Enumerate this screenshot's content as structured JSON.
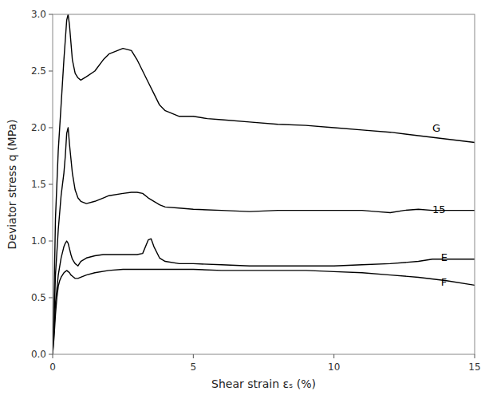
{
  "chart_data": {
    "type": "line",
    "xlabel": "Shear strain  εₛ (%)",
    "ylabel": "Deviator stress q (MPa)",
    "xlim": [
      0,
      15
    ],
    "ylim": [
      0,
      3
    ],
    "xticks": [
      0,
      5,
      10,
      15
    ],
    "yticks": [
      {
        "value": 0,
        "label": "0.0"
      },
      0.5,
      {
        "value": 1,
        "label": "1.0"
      },
      1.5,
      {
        "value": 2,
        "label": "2.0"
      },
      2.5,
      {
        "value": 3,
        "label": "3.0"
      }
    ],
    "grid": false,
    "color": "#000000",
    "series": [
      {
        "x": [
          0.0,
          0.05,
          0.1,
          0.2,
          0.3,
          0.4,
          0.5,
          0.55,
          0.6,
          0.7,
          0.8,
          0.9,
          1.0,
          1.2,
          1.5,
          1.8,
          2.0,
          2.5,
          2.8,
          3.0,
          3.2,
          3.4,
          3.6,
          3.8,
          4.0,
          4.5,
          5.0,
          5.5,
          6.0,
          7.0,
          8.0,
          9.0,
          10.0,
          11.0,
          12.0,
          13.0,
          14.0,
          15.0
        ],
        "values": [
          0.0,
          0.5,
          1.2,
          1.8,
          2.2,
          2.6,
          2.95,
          3.0,
          2.9,
          2.6,
          2.48,
          2.44,
          2.42,
          2.45,
          2.5,
          2.6,
          2.65,
          2.7,
          2.68,
          2.6,
          2.5,
          2.4,
          2.3,
          2.2,
          2.15,
          2.1,
          2.1,
          2.08,
          2.07,
          2.05,
          2.03,
          2.02,
          2.0,
          1.98,
          1.96,
          1.93,
          1.9,
          1.87
        ]
      },
      {
        "x": [
          0.0,
          0.05,
          0.1,
          0.2,
          0.3,
          0.4,
          0.45,
          0.5,
          0.55,
          0.6,
          0.7,
          0.8,
          0.9,
          1.0,
          1.2,
          1.5,
          1.8,
          2.0,
          2.5,
          2.8,
          3.0,
          3.2,
          3.4,
          3.6,
          3.8,
          4.0,
          4.5,
          5.0,
          6.0,
          7.0,
          8.0,
          9.0,
          10.0,
          11.0,
          11.5,
          12.0,
          12.5,
          13.0,
          13.5,
          14.0,
          15.0
        ],
        "values": [
          0.0,
          0.3,
          0.7,
          1.1,
          1.4,
          1.6,
          1.75,
          1.95,
          2.0,
          1.85,
          1.6,
          1.45,
          1.38,
          1.35,
          1.33,
          1.35,
          1.38,
          1.4,
          1.42,
          1.43,
          1.43,
          1.42,
          1.38,
          1.35,
          1.32,
          1.3,
          1.29,
          1.28,
          1.27,
          1.26,
          1.27,
          1.27,
          1.27,
          1.27,
          1.26,
          1.25,
          1.27,
          1.28,
          1.27,
          1.27,
          1.27
        ]
      },
      {
        "x": [
          0.0,
          0.05,
          0.1,
          0.2,
          0.3,
          0.4,
          0.45,
          0.5,
          0.55,
          0.6,
          0.65,
          0.7,
          0.75,
          0.8,
          0.85,
          0.9,
          1.0,
          1.2,
          1.5,
          1.8,
          2.0,
          2.5,
          3.0,
          3.2,
          3.4,
          3.5,
          3.6,
          3.8,
          4.0,
          4.5,
          5.0,
          6.0,
          7.0,
          8.0,
          9.0,
          10.0,
          11.0,
          12.0,
          13.0,
          13.5,
          14.0,
          15.0
        ],
        "values": [
          0.0,
          0.2,
          0.45,
          0.7,
          0.85,
          0.95,
          0.98,
          1.0,
          0.98,
          0.93,
          0.88,
          0.84,
          0.82,
          0.8,
          0.79,
          0.78,
          0.82,
          0.85,
          0.87,
          0.88,
          0.88,
          0.88,
          0.88,
          0.89,
          1.01,
          1.02,
          0.95,
          0.85,
          0.82,
          0.8,
          0.8,
          0.79,
          0.78,
          0.78,
          0.78,
          0.78,
          0.79,
          0.8,
          0.82,
          0.84,
          0.84,
          0.84
        ]
      },
      {
        "x": [
          0.0,
          0.05,
          0.1,
          0.15,
          0.2,
          0.25,
          0.3,
          0.35,
          0.4,
          0.45,
          0.5,
          0.55,
          0.6,
          0.65,
          0.7,
          0.75,
          0.8,
          0.9,
          1.0,
          1.2,
          1.5,
          2.0,
          2.5,
          3.0,
          4.0,
          5.0,
          6.0,
          7.0,
          8.0,
          9.0,
          10.0,
          11.0,
          12.0,
          13.0,
          14.0,
          15.0
        ],
        "values": [
          0.0,
          0.15,
          0.35,
          0.5,
          0.6,
          0.65,
          0.68,
          0.7,
          0.72,
          0.73,
          0.74,
          0.73,
          0.72,
          0.7,
          0.69,
          0.68,
          0.67,
          0.67,
          0.68,
          0.7,
          0.72,
          0.74,
          0.75,
          0.75,
          0.75,
          0.75,
          0.74,
          0.74,
          0.74,
          0.74,
          0.73,
          0.72,
          0.7,
          0.68,
          0.65,
          0.61
        ]
      }
    ],
    "annotations": [
      {
        "text": "G",
        "x": 13.5,
        "y": 2.0
      },
      {
        "text": "15",
        "x": 13.5,
        "y": 1.28
      },
      {
        "text": "E",
        "x": 13.8,
        "y": 0.855
      },
      {
        "text": "F",
        "x": 13.8,
        "y": 0.635
      }
    ]
  }
}
